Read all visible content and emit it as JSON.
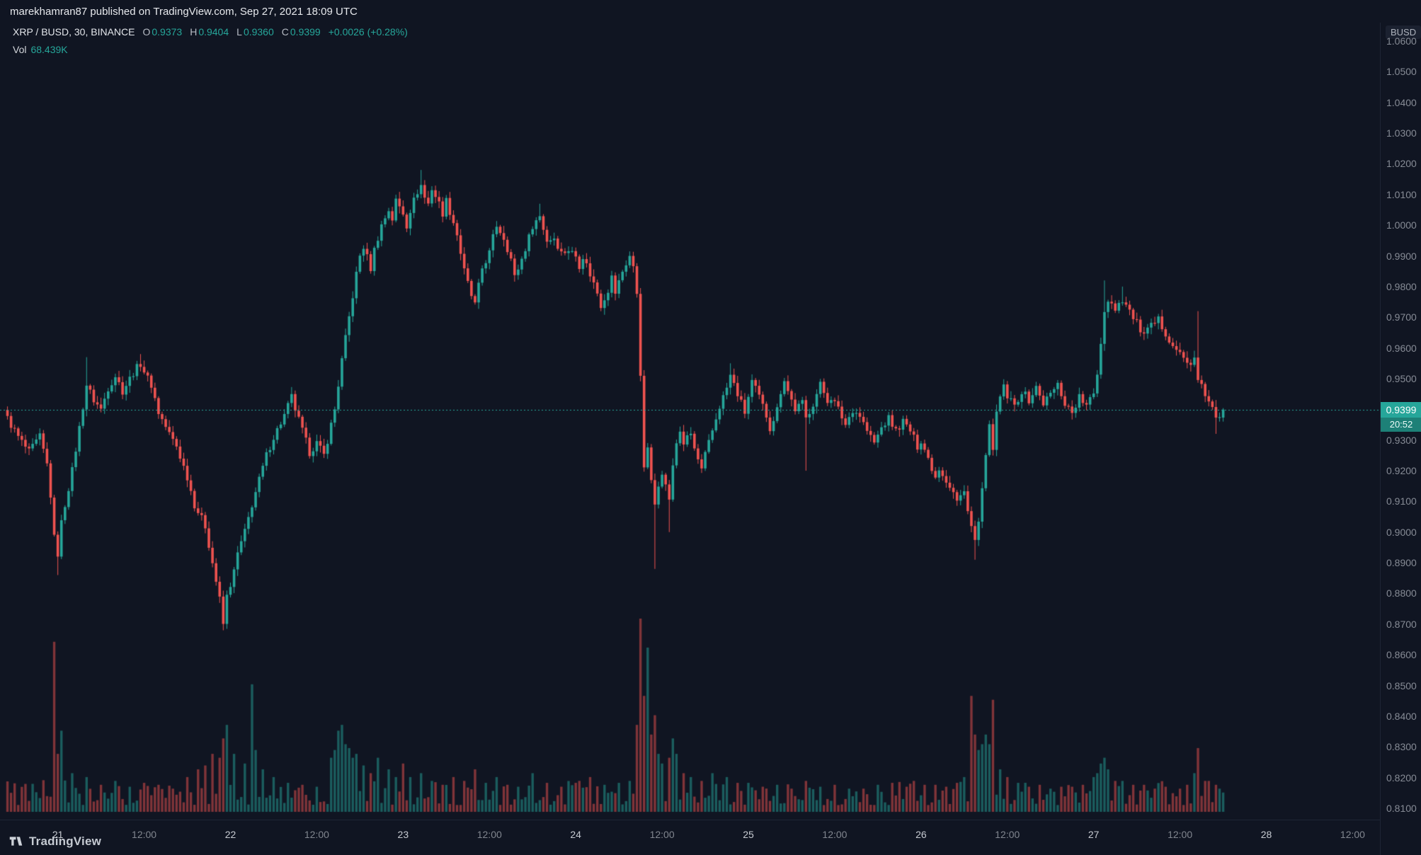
{
  "topbar": {
    "text": "marekhamran87 published on TradingView.com, Sep 27, 2021 18:09 UTC"
  },
  "legend": {
    "symbol": "XRP / BUSD, 30, BINANCE",
    "ohlc": [
      {
        "label": "O",
        "value": "0.9373"
      },
      {
        "label": "H",
        "value": "0.9404"
      },
      {
        "label": "L",
        "value": "0.9360"
      },
      {
        "label": "C",
        "value": "0.9399"
      }
    ],
    "change": "+0.0026 (+0.28%)",
    "vol_label": "Vol",
    "vol_value": "68.439K"
  },
  "price_axis": {
    "currency": "BUSD",
    "labels": [
      "1.0600",
      "1.0500",
      "1.0400",
      "1.0300",
      "1.0200",
      "1.0100",
      "1.0000",
      "0.9900",
      "0.9800",
      "0.9700",
      "0.9600",
      "0.9500",
      "0.9400",
      "0.9300",
      "0.9200",
      "0.9100",
      "0.9000",
      "0.8900",
      "0.8800",
      "0.8700",
      "0.8600",
      "0.8500",
      "0.8400",
      "0.8300",
      "0.8200",
      "0.8100"
    ]
  },
  "price_tag": {
    "price": "0.9399",
    "countdown": "20:52"
  },
  "time_axis": {
    "labels": [
      {
        "text": "21",
        "idx": 14,
        "major": true
      },
      {
        "text": "12:00",
        "idx": 38,
        "major": false
      },
      {
        "text": "22",
        "idx": 62,
        "major": true
      },
      {
        "text": "12:00",
        "idx": 86,
        "major": false
      },
      {
        "text": "23",
        "idx": 110,
        "major": true
      },
      {
        "text": "12:00",
        "idx": 134,
        "major": false
      },
      {
        "text": "24",
        "idx": 158,
        "major": true
      },
      {
        "text": "12:00",
        "idx": 182,
        "major": false
      },
      {
        "text": "25",
        "idx": 206,
        "major": true
      },
      {
        "text": "12:00",
        "idx": 230,
        "major": false
      },
      {
        "text": "26",
        "idx": 254,
        "major": true
      },
      {
        "text": "12:00",
        "idx": 278,
        "major": false
      },
      {
        "text": "27",
        "idx": 302,
        "major": true
      },
      {
        "text": "12:00",
        "idx": 326,
        "major": false
      },
      {
        "text": "28",
        "idx": 350,
        "major": true
      },
      {
        "text": "12:00",
        "idx": 374,
        "major": false
      }
    ]
  },
  "footer": {
    "logo_text": "TradingView"
  },
  "colors": {
    "bg": "#101522",
    "up": "#26a69a",
    "down": "#ef5350",
    "vol_up": "rgba(38,166,154,0.5)",
    "vol_down": "rgba(239,83,80,0.5)",
    "price_line": "#26a69a",
    "countdown_bg": "#1d8077"
  },
  "chart_data": {
    "type": "candlestick",
    "symbol": "XRP/BUSD",
    "exchange": "BINANCE",
    "interval_minutes": 30,
    "has_volume_overlay": true,
    "grid": false,
    "price_axis_range": [
      0.805,
      1.066
    ],
    "time_range_days": [
      "Sep 20 17:00 UTC",
      "Sep 28 12:00 UTC (axis)"
    ],
    "last_bar": {
      "o": 0.9373,
      "h": 0.9404,
      "l": 0.936,
      "c": 0.9399
    },
    "current_price": 0.9399,
    "volume_current": "68.439K",
    "candle_count": 339,
    "noise": 0.0013,
    "wick": 0.0018,
    "price_waypoints": [
      [
        0,
        0.937
      ],
      [
        3,
        0.931
      ],
      [
        6,
        0.926
      ],
      [
        9,
        0.931
      ],
      [
        11,
        0.922
      ],
      [
        12,
        0.912
      ],
      [
        13,
        0.898
      ],
      [
        14,
        0.893
      ],
      [
        15,
        0.903
      ],
      [
        16,
        0.909
      ],
      [
        18,
        0.92
      ],
      [
        20,
        0.934
      ],
      [
        22,
        0.948
      ],
      [
        24,
        0.943
      ],
      [
        26,
        0.94
      ],
      [
        28,
        0.947
      ],
      [
        30,
        0.951
      ],
      [
        32,
        0.946
      ],
      [
        35,
        0.952
      ],
      [
        37,
        0.955
      ],
      [
        39,
        0.95
      ],
      [
        40,
        0.948
      ],
      [
        42,
        0.939
      ],
      [
        45,
        0.932
      ],
      [
        47,
        0.928
      ],
      [
        50,
        0.918
      ],
      [
        52,
        0.909
      ],
      [
        55,
        0.902
      ],
      [
        56,
        0.896
      ],
      [
        58,
        0.884
      ],
      [
        59,
        0.878
      ],
      [
        60,
        0.87
      ],
      [
        61,
        0.879
      ],
      [
        63,
        0.887
      ],
      [
        64,
        0.893
      ],
      [
        66,
        0.9
      ],
      [
        68,
        0.909
      ],
      [
        70,
        0.917
      ],
      [
        72,
        0.925
      ],
      [
        74,
        0.931
      ],
      [
        77,
        0.938
      ],
      [
        79,
        0.944
      ],
      [
        80,
        0.94
      ],
      [
        82,
        0.933
      ],
      [
        84,
        0.926
      ],
      [
        86,
        0.929
      ],
      [
        88,
        0.925
      ],
      [
        89,
        0.93
      ],
      [
        91,
        0.94
      ],
      [
        93,
        0.956
      ],
      [
        95,
        0.97
      ],
      [
        97,
        0.984
      ],
      [
        98,
        0.99
      ],
      [
        99,
        0.993
      ],
      [
        101,
        0.986
      ],
      [
        102,
        0.992
      ],
      [
        104,
        1.0
      ],
      [
        106,
        1.005
      ],
      [
        107,
        1.002
      ],
      [
        108,
        1.008
      ],
      [
        110,
        1.004
      ],
      [
        111,
        1.0
      ],
      [
        112,
        1.005
      ],
      [
        114,
        1.011
      ],
      [
        115,
        1.013
      ],
      [
        116,
        1.009
      ],
      [
        117,
        1.007
      ],
      [
        118,
        1.012
      ],
      [
        120,
        1.007
      ],
      [
        121,
        1.004
      ],
      [
        122,
        1.008
      ],
      [
        124,
        1.001
      ],
      [
        125,
        0.997
      ],
      [
        126,
        0.991
      ],
      [
        127,
        0.985
      ],
      [
        129,
        0.977
      ],
      [
        130,
        0.974
      ],
      [
        131,
        0.98
      ],
      [
        132,
        0.986
      ],
      [
        134,
        0.991
      ],
      [
        135,
        0.996
      ],
      [
        136,
        1.0
      ],
      [
        138,
        0.996
      ],
      [
        140,
        0.989
      ],
      [
        141,
        0.983
      ],
      [
        143,
        0.989
      ],
      [
        145,
        0.996
      ],
      [
        146,
        1.0
      ],
      [
        148,
        1.003
      ],
      [
        149,
        0.999
      ],
      [
        150,
        0.995
      ],
      [
        152,
        0.996
      ],
      [
        154,
        0.991
      ],
      [
        156,
        0.992
      ],
      [
        158,
        0.99
      ],
      [
        159,
        0.987
      ],
      [
        160,
        0.99
      ],
      [
        162,
        0.984
      ],
      [
        164,
        0.978
      ],
      [
        165,
        0.974
      ],
      [
        167,
        0.979
      ],
      [
        168,
        0.983
      ],
      [
        169,
        0.978
      ],
      [
        171,
        0.985
      ],
      [
        173,
        0.99
      ],
      [
        174,
        0.986
      ],
      [
        175,
        0.978
      ],
      [
        176,
        0.952
      ],
      [
        177,
        0.92
      ],
      [
        178,
        0.928
      ],
      [
        179,
        0.916
      ],
      [
        180,
        0.909
      ],
      [
        181,
        0.916
      ],
      [
        182,
        0.92
      ],
      [
        183,
        0.915
      ],
      [
        184,
        0.911
      ],
      [
        185,
        0.921
      ],
      [
        186,
        0.929
      ],
      [
        187,
        0.933
      ],
      [
        188,
        0.929
      ],
      [
        190,
        0.932
      ],
      [
        191,
        0.927
      ],
      [
        193,
        0.92
      ],
      [
        194,
        0.925
      ],
      [
        196,
        0.933
      ],
      [
        198,
        0.941
      ],
      [
        200,
        0.947
      ],
      [
        201,
        0.951
      ],
      [
        202,
        0.948
      ],
      [
        204,
        0.942
      ],
      [
        205,
        0.939
      ],
      [
        206,
        0.944
      ],
      [
        207,
        0.949
      ],
      [
        209,
        0.944
      ],
      [
        211,
        0.938
      ],
      [
        212,
        0.934
      ],
      [
        214,
        0.94
      ],
      [
        215,
        0.946
      ],
      [
        216,
        0.95
      ],
      [
        217,
        0.946
      ],
      [
        219,
        0.94
      ],
      [
        221,
        0.942
      ],
      [
        222,
        0.937
      ],
      [
        224,
        0.942
      ],
      [
        226,
        0.948
      ],
      [
        228,
        0.943
      ],
      [
        229,
        0.944
      ],
      [
        231,
        0.94
      ],
      [
        233,
        0.935
      ],
      [
        235,
        0.94
      ],
      [
        237,
        0.938
      ],
      [
        239,
        0.933
      ],
      [
        241,
        0.929
      ],
      [
        243,
        0.934
      ],
      [
        245,
        0.937
      ],
      [
        247,
        0.933
      ],
      [
        249,
        0.936
      ],
      [
        251,
        0.933
      ],
      [
        253,
        0.928
      ],
      [
        254,
        0.93
      ],
      [
        256,
        0.924
      ],
      [
        258,
        0.918
      ],
      [
        259,
        0.921
      ],
      [
        261,
        0.917
      ],
      [
        263,
        0.913
      ],
      [
        264,
        0.91
      ],
      [
        266,
        0.913
      ],
      [
        267,
        0.908
      ],
      [
        268,
        0.902
      ],
      [
        269,
        0.897
      ],
      [
        270,
        0.903
      ],
      [
        271,
        0.914
      ],
      [
        272,
        0.924
      ],
      [
        273,
        0.934
      ],
      [
        274,
        0.928
      ],
      [
        275,
        0.938
      ],
      [
        276,
        0.944
      ],
      [
        277,
        0.947
      ],
      [
        278,
        0.944
      ],
      [
        280,
        0.941
      ],
      [
        282,
        0.946
      ],
      [
        284,
        0.943
      ],
      [
        286,
        0.947
      ],
      [
        288,
        0.942
      ],
      [
        290,
        0.945
      ],
      [
        292,
        0.948
      ],
      [
        294,
        0.942
      ],
      [
        296,
        0.939
      ],
      [
        298,
        0.944
      ],
      [
        300,
        0.941
      ],
      [
        302,
        0.945
      ],
      [
        303,
        0.952
      ],
      [
        304,
        0.962
      ],
      [
        305,
        0.972
      ],
      [
        306,
        0.976
      ],
      [
        308,
        0.973
      ],
      [
        310,
        0.976
      ],
      [
        312,
        0.972
      ],
      [
        314,
        0.968
      ],
      [
        316,
        0.964
      ],
      [
        318,
        0.967
      ],
      [
        320,
        0.969
      ],
      [
        322,
        0.965
      ],
      [
        324,
        0.961
      ],
      [
        326,
        0.958
      ],
      [
        328,
        0.955
      ],
      [
        330,
        0.956
      ],
      [
        331,
        0.949
      ],
      [
        332,
        0.947
      ],
      [
        334,
        0.943
      ],
      [
        336,
        0.937
      ],
      [
        337,
        0.9365
      ],
      [
        338,
        0.9399
      ]
    ],
    "special_wicks": [
      [
        14,
        "l",
        0.886
      ],
      [
        22,
        "h",
        0.957
      ],
      [
        37,
        "h",
        0.958
      ],
      [
        60,
        "l",
        0.868
      ],
      [
        115,
        "h",
        1.018
      ],
      [
        148,
        "h",
        1.007
      ],
      [
        180,
        "l",
        0.888
      ],
      [
        184,
        "l",
        0.9
      ],
      [
        201,
        "h",
        0.955
      ],
      [
        222,
        "l",
        0.92
      ],
      [
        269,
        "l",
        0.891
      ],
      [
        305,
        "h",
        0.982
      ],
      [
        310,
        "h",
        0.98
      ],
      [
        331,
        "h",
        0.972
      ],
      [
        336,
        "l",
        0.932
      ]
    ],
    "volume_spikes": {
      "13": 0.88,
      "14": 0.3,
      "15": 0.42,
      "18": 0.2,
      "22": 0.18,
      "26": 0.14,
      "30": 0.16,
      "34": 0.13,
      "38": 0.15,
      "42": 0.14,
      "46": 0.12,
      "50": 0.18,
      "53": 0.22,
      "55": 0.24,
      "57": 0.3,
      "59": 0.28,
      "60": 0.38,
      "61": 0.45,
      "63": 0.3,
      "66": 0.25,
      "68": 0.66,
      "69": 0.32,
      "71": 0.22,
      "74": 0.18,
      "78": 0.15,
      "82": 0.14,
      "86": 0.13,
      "90": 0.28,
      "91": 0.32,
      "92": 0.42,
      "93": 0.45,
      "94": 0.35,
      "95": 0.33,
      "96": 0.28,
      "97": 0.3,
      "99": 0.24,
      "101": 0.2,
      "103": 0.28,
      "106": 0.22,
      "108": 0.18,
      "110": 0.25,
      "112": 0.18,
      "115": 0.2,
      "118": 0.16,
      "121": 0.14,
      "124": 0.18,
      "127": 0.16,
      "130": 0.22,
      "133": 0.15,
      "136": 0.18,
      "139": 0.14,
      "142": 0.13,
      "146": 0.2,
      "150": 0.15,
      "154": 0.13,
      "158": 0.15,
      "162": 0.18,
      "166": 0.14,
      "170": 0.15,
      "173": 0.16,
      "175": 0.45,
      "176": 1.0,
      "177": 0.6,
      "178": 0.85,
      "179": 0.4,
      "180": 0.5,
      "181": 0.3,
      "182": 0.25,
      "184": 0.28,
      "185": 0.38,
      "186": 0.3,
      "188": 0.2,
      "190": 0.18,
      "193": 0.16,
      "196": 0.2,
      "200": 0.18,
      "203": 0.15,
      "206": 0.15,
      "210": 0.13,
      "214": 0.14,
      "218": 0.12,
      "222": 0.16,
      "226": 0.13,
      "230": 0.14,
      "234": 0.12,
      "238": 0.12,
      "242": 0.14,
      "246": 0.15,
      "250": 0.13,
      "252": 0.16,
      "255": 0.14,
      "258": 0.14,
      "261": 0.13,
      "264": 0.15,
      "266": 0.18,
      "268": 0.6,
      "269": 0.4,
      "270": 0.32,
      "271": 0.35,
      "272": 0.4,
      "273": 0.35,
      "274": 0.58,
      "276": 0.22,
      "278": 0.18,
      "281": 0.15,
      "284": 0.13,
      "287": 0.14,
      "290": 0.12,
      "293": 0.13,
      "296": 0.13,
      "299": 0.14,
      "302": 0.18,
      "303": 0.2,
      "304": 0.25,
      "305": 0.28,
      "306": 0.22,
      "308": 0.16,
      "310": 0.16,
      "313": 0.14,
      "316": 0.14,
      "319": 0.12,
      "322": 0.13,
      "326": 0.12,
      "328": 0.14,
      "330": 0.2,
      "331": 0.33,
      "333": 0.16,
      "334": 0.16,
      "336": 0.14,
      "337": 0.12,
      "338": 0.1
    }
  }
}
